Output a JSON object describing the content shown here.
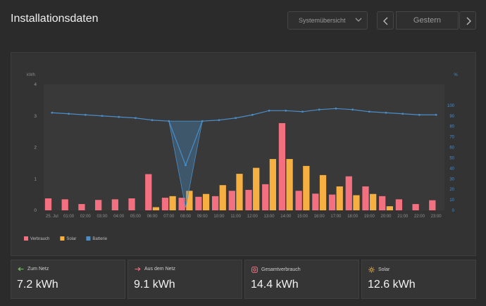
{
  "header": {
    "title": "Installationsdaten",
    "view_select": "Systemübersicht",
    "date_label": "Gestern"
  },
  "chart_data": {
    "type": "bar",
    "left_axis_unit": "kWh",
    "right_axis_unit": "%",
    "ylim": [
      0,
      4
    ],
    "y_ticks": [
      "0",
      "1",
      "2",
      "3",
      "4"
    ],
    "y2lim": [
      0,
      120
    ],
    "y2_ticks": [
      "0",
      "10",
      "20",
      "30",
      "40",
      "50",
      "60",
      "70",
      "80",
      "90",
      "100"
    ],
    "x_labels": [
      "25. Jul",
      "01:00",
      "02:00",
      "03:00",
      "04:00",
      "05:00",
      "06:00",
      "07:00",
      "08:00",
      "09:00",
      "10:00",
      "11:00",
      "12:00",
      "13:00",
      "14:00",
      "15:00",
      "16:00",
      "17:00",
      "18:00",
      "19:00",
      "20:00",
      "21:00",
      "22:00",
      "23:00"
    ],
    "legend": [
      "Verbrauch",
      "Solar",
      "Batterie"
    ],
    "colors": {
      "Verbrauch": "#f2707f",
      "Solar": "#f5b041",
      "Batterie": "#4a8ec9"
    },
    "series": [
      {
        "name": "Verbrauch",
        "values": [
          0.38,
          0.35,
          0.2,
          0.33,
          0.35,
          0.38,
          1.15,
          0.4,
          0.4,
          0.43,
          0.45,
          0.62,
          0.65,
          0.83,
          2.77,
          0.62,
          0.53,
          0.5,
          1.08,
          0.76,
          0.45,
          0.35,
          0.2,
          0.32
        ]
      },
      {
        "name": "Solar",
        "values": [
          0,
          0,
          0,
          0,
          0,
          0,
          0.1,
          0.45,
          0.62,
          0.52,
          0.8,
          1.16,
          1.35,
          1.63,
          1.63,
          1.41,
          1.12,
          0.76,
          0.48,
          0.52,
          0.13,
          0,
          0,
          0
        ]
      },
      {
        "name": "Batterie",
        "axis": "right",
        "values": [
          93,
          92,
          91,
          90,
          89,
          88,
          86,
          85,
          43,
          85,
          86,
          88,
          91,
          95,
          95,
          94,
          96,
          97,
          96,
          94,
          93,
          92,
          91,
          91
        ]
      }
    ]
  },
  "cards": [
    {
      "label": "Zum Netz",
      "value": "7.2 kWh",
      "icon": "arrow-left-icon",
      "color": "#7cc46a"
    },
    {
      "label": "Aus dem Netz",
      "value": "9.1 kWh",
      "icon": "arrow-right-icon",
      "color": "#f2707f"
    },
    {
      "label": "Gesamtverbrauch",
      "value": "14.4 kWh",
      "icon": "consumption-icon",
      "color": "#f2707f"
    },
    {
      "label": "Solar",
      "value": "12.6 kWh",
      "icon": "sun-icon",
      "color": "#f5b041"
    }
  ]
}
